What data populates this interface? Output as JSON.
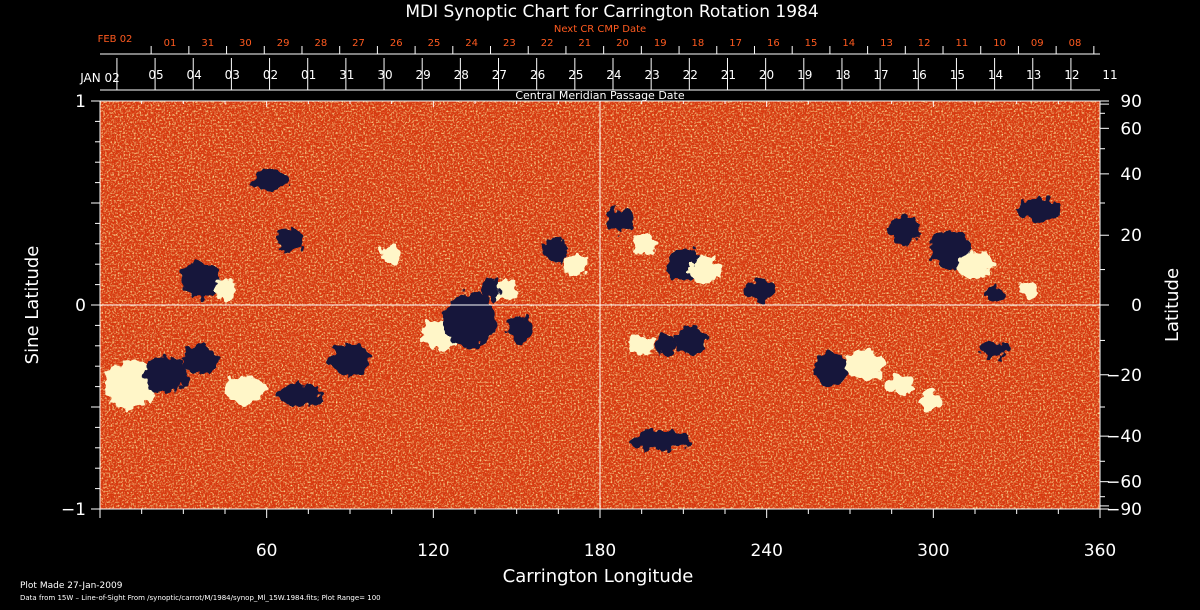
{
  "chart_data": {
    "type": "heatmap",
    "title": "MDI Synoptic Chart for Carrington Rotation 1984",
    "xlabel": "Carrington Longitude",
    "ylabel_left": "Sine Latitude",
    "ylabel_right": "Latitude",
    "top_axis_label": "Central Meridian Passage Date",
    "top_axis_label_next": "Next CR CMP Date",
    "xlim": [
      0,
      360
    ],
    "ylim": [
      -1,
      1
    ],
    "x_ticks": [
      60,
      120,
      180,
      240,
      300,
      360
    ],
    "y_ticks_left": [
      {
        "value": 1,
        "label": "1"
      },
      {
        "value": 0,
        "label": "0"
      },
      {
        "value": -1,
        "label": "−1"
      }
    ],
    "y_ticks_right": [
      {
        "deg": 90,
        "label": "90"
      },
      {
        "deg": 60,
        "label": "60"
      },
      {
        "deg": 40,
        "label": "40"
      },
      {
        "deg": 20,
        "label": "20"
      },
      {
        "deg": 0,
        "label": "0"
      },
      {
        "deg": -20,
        "label": "−20"
      },
      {
        "deg": -40,
        "label": "−40"
      },
      {
        "deg": -60,
        "label": "−60"
      },
      {
        "deg": -90,
        "label": "−90"
      }
    ],
    "cmp_dates_start_label": "JAN 02",
    "cmp_dates": [
      "05",
      "04",
      "03",
      "02",
      "01",
      "31",
      "30",
      "29",
      "28",
      "27",
      "26",
      "25",
      "24",
      "23",
      "22",
      "21",
      "20",
      "19",
      "18",
      "17",
      "16",
      "15",
      "14",
      "13",
      "12",
      "11"
    ],
    "next_cmp_dates_start_label": "FEB 02",
    "next_cmp_dates": [
      "01",
      "31",
      "30",
      "29",
      "28",
      "27",
      "26",
      "25",
      "24",
      "23",
      "22",
      "21",
      "20",
      "19",
      "18",
      "17",
      "16",
      "15",
      "14",
      "13",
      "12",
      "11",
      "10",
      "09",
      "08"
    ],
    "colors": {
      "background": "#d8380e",
      "positive": "#fff6c8",
      "negative": "#14143a",
      "grid": "#ffffff",
      "next_dates": "#ff5a1f"
    },
    "plot_range": 100
  },
  "footer": {
    "plot_made": "Plot Made 27-Jan-2009",
    "data_source": "Data from 15W – Line-of-Sight From /synoptic/carrot/M/1984/synop_Ml_15W.1984.fits; Plot Range=  100"
  }
}
